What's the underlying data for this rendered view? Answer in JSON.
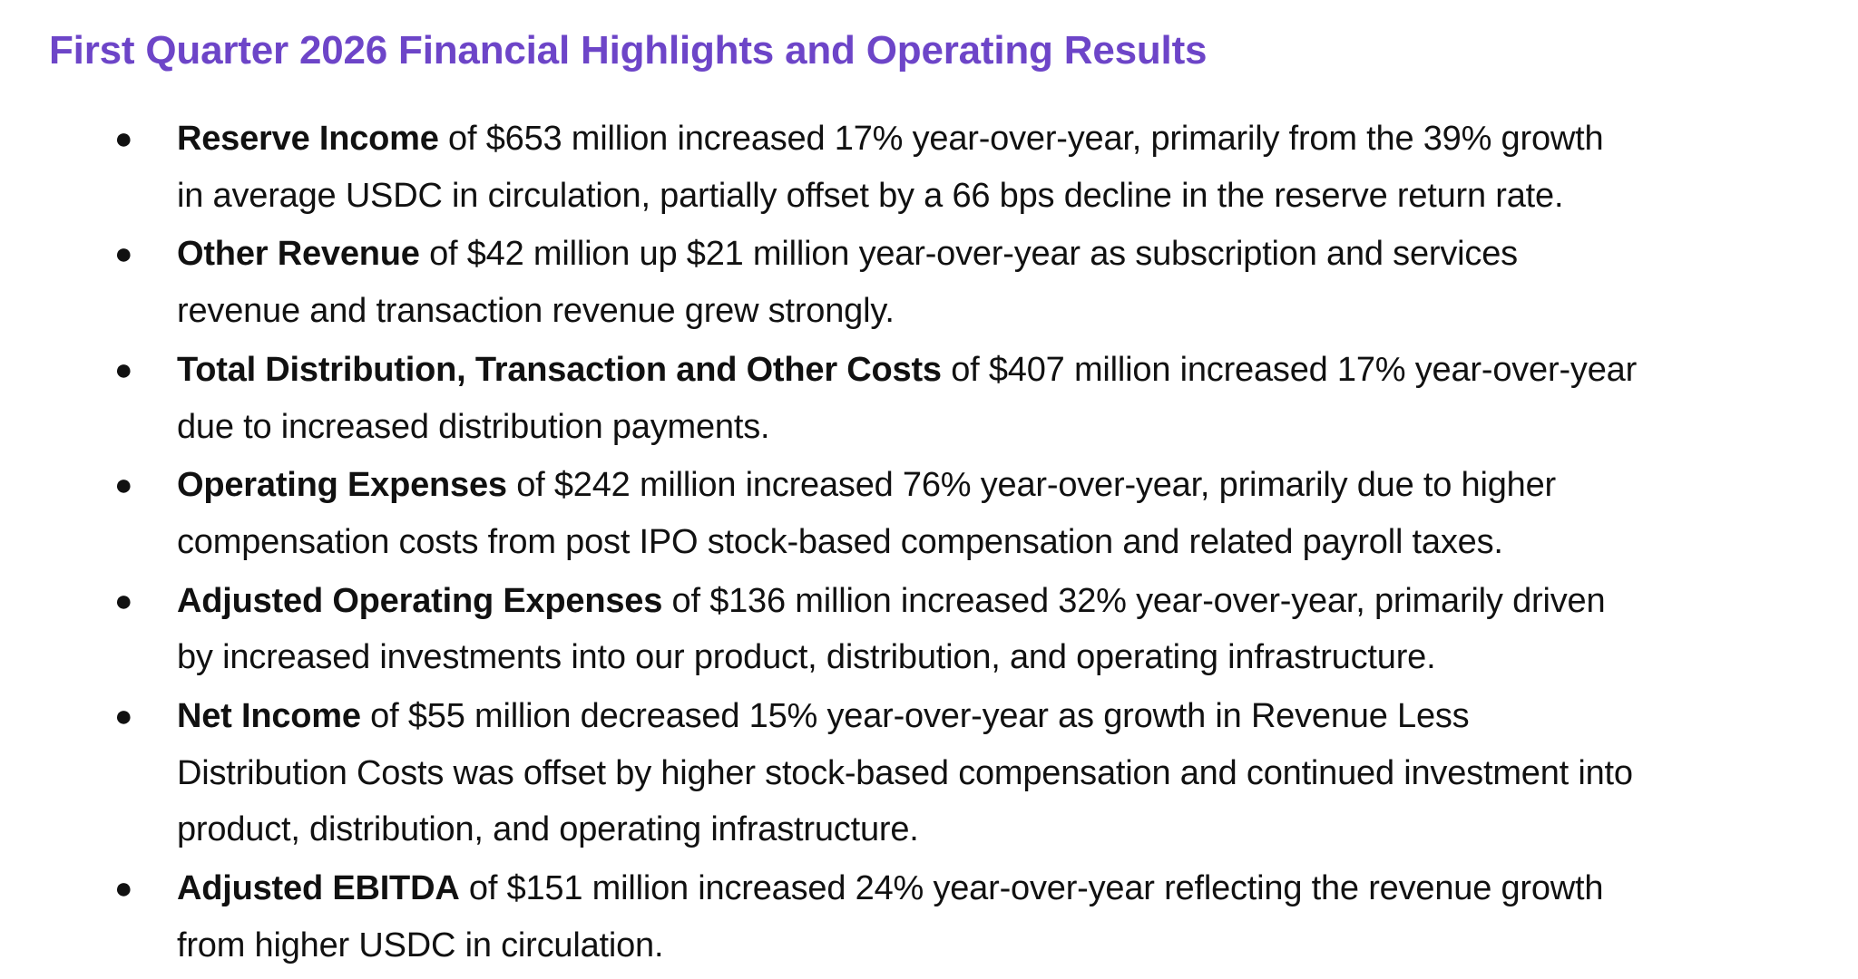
{
  "heading": "First Quarter 2026 Financial Highlights and Operating Results",
  "bullet_glyph": "●",
  "highlights": [
    {
      "term": "Reserve Income",
      "text": " of $653 million increased 17% year-over-year, primarily from the 39% growth in average USDC in circulation, partially offset by a 66 bps decline in the reserve return rate."
    },
    {
      "term": "Other Revenue",
      "text": " of $42 million up $21 million year-over-year as subscription and services revenue and transaction revenue grew strongly."
    },
    {
      "term": "Total Distribution, Transaction and Other Costs",
      "text": " of $407 million increased 17% year-over-year due to increased distribution payments."
    },
    {
      "term": "Operating Expenses",
      "text": " of $242 million increased 76% year-over-year, primarily due to higher compensation costs from post IPO stock-based compensation and related payroll taxes."
    },
    {
      "term": "Adjusted Operating Expenses",
      "text": " of $136 million increased 32% year-over-year, primarily driven by increased investments into our product, distribution, and operating infrastructure."
    },
    {
      "term": "Net Income",
      "text": " of $55 million decreased 15% year-over-year as growth in Revenue Less Distribution Costs was offset by higher stock-based compensation and continued investment into product, distribution, and operating infrastructure."
    },
    {
      "term": "Adjusted EBITDA",
      "text": " of $151 million increased 24% year-over-year reflecting the revenue growth from higher USDC in circulation."
    }
  ]
}
